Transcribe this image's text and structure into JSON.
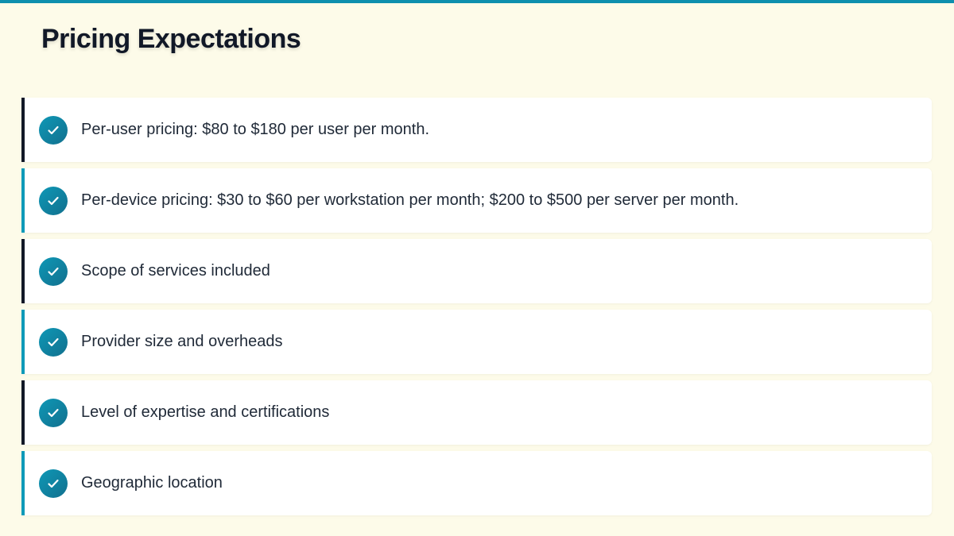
{
  "title": "Pricing Expectations",
  "colors": {
    "accent": "#0e8fae",
    "dark": "#111827",
    "background": "#fdfbe9"
  },
  "items": [
    {
      "text": "Per-user pricing: $80 to $180 per user per month.",
      "icon": "check-circle-icon"
    },
    {
      "text": "Per-device pricing: $30 to $60 per workstation per month; $200 to $500 per server per month.",
      "icon": "check-circle-icon"
    },
    {
      "text": "Scope of services included",
      "icon": "check-circle-icon"
    },
    {
      "text": "Provider size and overheads",
      "icon": "check-circle-icon"
    },
    {
      "text": "Level of expertise and certifications",
      "icon": "check-circle-icon"
    },
    {
      "text": "Geographic location",
      "icon": "check-circle-icon"
    }
  ]
}
